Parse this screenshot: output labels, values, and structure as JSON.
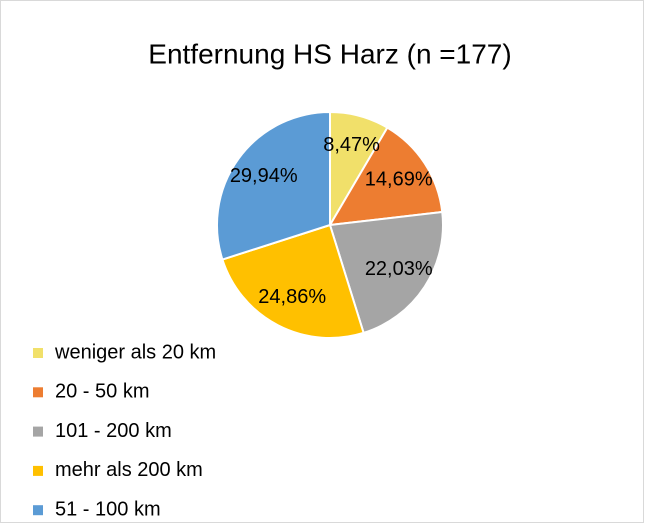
{
  "chart_data": {
    "type": "pie",
    "title": "Entfernung HS Harz (n =177)",
    "categories": [
      "weniger als 20 km",
      "20 - 50 km",
      "101 - 200 km",
      "mehr als 200 km",
      "51 - 100 km"
    ],
    "values": [
      8.47,
      14.69,
      22.03,
      24.86,
      29.94
    ],
    "value_labels": [
      "8,47%",
      "14,69%",
      "22,03%",
      "24,86%",
      "29,94%"
    ],
    "colors": [
      "#f1e06a",
      "#ed7d31",
      "#a5a5a5",
      "#ffc000",
      "#5b9bd5"
    ],
    "legend": "bottom-left"
  }
}
